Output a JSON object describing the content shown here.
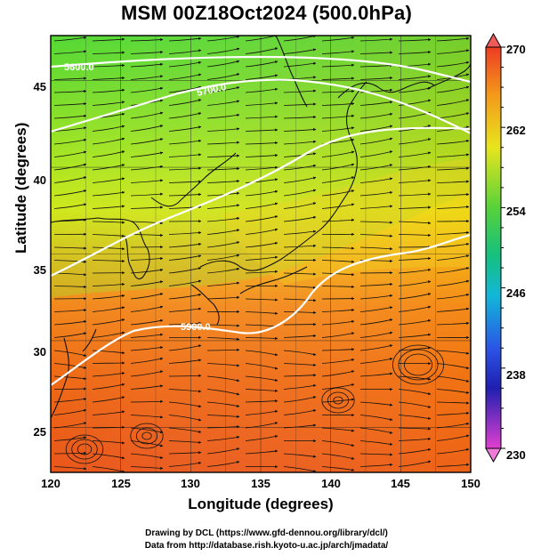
{
  "header": {
    "title": "MSM 00Z18Oct2024 (500.0hPa)"
  },
  "axes": {
    "xlabel": "Longitude (degrees)",
    "ylabel": "Latitude  (degrees)",
    "x_ticks": [
      "120",
      "125",
      "130",
      "135",
      "140",
      "145",
      "150"
    ],
    "y_ticks": [
      "25",
      "30",
      "35",
      "40",
      "45"
    ]
  },
  "colorbar": {
    "ticks": [
      "270",
      "262",
      "254",
      "246",
      "238",
      "230"
    ],
    "min": 230,
    "max": 270
  },
  "contours": [
    {
      "label": "5600.0"
    },
    {
      "label": "5700.0"
    },
    {
      "label": "5900.0"
    }
  ],
  "credits": {
    "line1": "Drawing by DCL (https://www.gfd-dennou.org/library/dcl/)",
    "line2": "Data from http://database.rish.kyoto-u.ac.jp/arch/jmadata/"
  },
  "chart_data": {
    "type": "heatmap",
    "title": "MSM 00Z18Oct2024 (500.0hPa)",
    "xlabel": "Longitude (degrees)",
    "ylabel": "Latitude  (degrees)",
    "xlim": [
      120,
      150
    ],
    "ylim": [
      22.4,
      47.6
    ],
    "x_ticks": [
      120,
      125,
      130,
      135,
      140,
      145,
      150
    ],
    "y_ticks": [
      25,
      30,
      35,
      40,
      45
    ],
    "color_scale": {
      "min": 230,
      "max": 270,
      "ticks": [
        270,
        262,
        254,
        246,
        238,
        230
      ]
    },
    "field_estimate": [
      {
        "lat": 47,
        "lon_start": 120,
        "value": 257
      },
      {
        "lat": 45,
        "lon_start": 120,
        "value": 258
      },
      {
        "lat": 40,
        "lon_start": 120,
        "value": 261
      },
      {
        "lat": 35,
        "lon_start": 120,
        "value": 265
      },
      {
        "lat": 30,
        "lon_start": 120,
        "value": 267
      },
      {
        "lat": 25,
        "lon_start": 120,
        "value": 268
      }
    ],
    "contours": [
      {
        "label": "5600.0",
        "lon": 121.5,
        "lat": 46.6
      },
      {
        "label": "5700.0",
        "lon": 131.0,
        "lat": 44.8
      },
      {
        "label": "5900.0",
        "lon": 130.5,
        "lat": 31.5
      }
    ],
    "grid": true,
    "vectors": "streamlines"
  }
}
